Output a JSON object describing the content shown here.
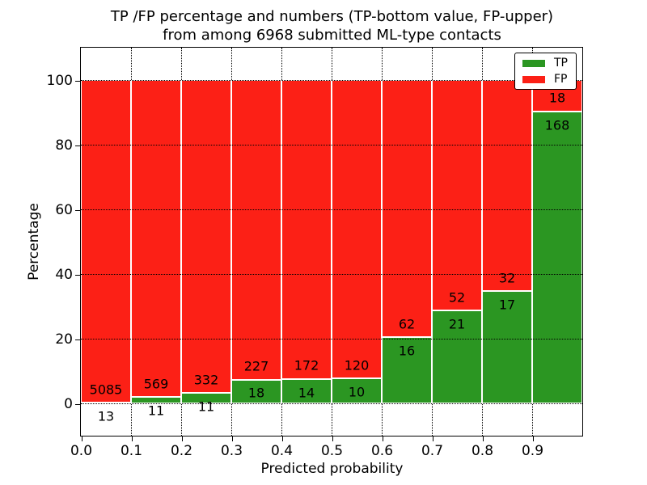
{
  "title": {
    "line1": "TP /FP percentage and numbers (TP-bottom value, FP-upper)",
    "line2": "from among 6968 submitted ML-type contacts"
  },
  "axes": {
    "xlabel": "Predicted probability",
    "ylabel": "Percentage",
    "xtick_labels": [
      "0.0",
      "0.1",
      "0.2",
      "0.3",
      "0.4",
      "0.5",
      "0.6",
      "0.7",
      "0.8",
      "0.9"
    ],
    "ytick_values": [
      0,
      20,
      40,
      60,
      80,
      100
    ]
  },
  "legend": {
    "items": [
      {
        "label": "TP",
        "color": "#2b9622"
      },
      {
        "label": "FP",
        "color": "#fc2016"
      }
    ]
  },
  "chart_data": {
    "type": "bar",
    "stacked": true,
    "normalized_to": 100,
    "title": "TP /FP percentage and numbers (TP-bottom value, FP-upper) from among 6968 submitted ML-type contacts",
    "xlabel": "Predicted probability",
    "ylabel": "Percentage",
    "bin_starts": [
      0.0,
      0.1,
      0.2,
      0.3,
      0.4,
      0.5,
      0.6,
      0.7,
      0.8,
      0.9
    ],
    "bin_width": 0.1,
    "series": [
      {
        "name": "TP",
        "color": "#2b9622",
        "counts": [
          13,
          11,
          11,
          18,
          14,
          10,
          16,
          21,
          17,
          168
        ]
      },
      {
        "name": "FP",
        "color": "#fc2016",
        "counts": [
          5085,
          569,
          332,
          227,
          172,
          120,
          62,
          52,
          32,
          18
        ]
      }
    ],
    "total_submitted": 6968,
    "xlim": [
      0,
      1.0
    ],
    "ylim": [
      -10,
      110
    ],
    "grid": true,
    "grid_linestyle": "dotted",
    "legend_position": "upper right"
  }
}
